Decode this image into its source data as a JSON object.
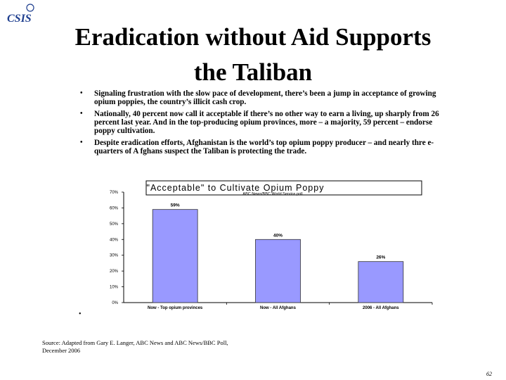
{
  "logo_text": "CSIS",
  "title_line1": "Eradication without Aid Supports",
  "title_line2": "the Taliban",
  "bullets": [
    "Signaling frustration with the slow pace of development, there’s been a jump in acceptance of growing opium poppies, the country’s illicit cash crop.",
    "Nationally, 40 percent now call it acceptable if there’s no other way to earn a living, up sharply from 26 percent last year. And in the top-producing opium provinces, more – a majority, 59 percent – endorse poppy cultivation.",
    "Despite eradication efforts, Afghanistan is the world’s top opium poppy producer – and nearly thre e-quarters of A fghans suspect the Taliban is protecting the trade."
  ],
  "bullet_glyph": "•",
  "chart_data": {
    "type": "bar",
    "title": "\"Acceptable\" to Cultivate Opium Poppy",
    "subtitle": "ABC News/BBC World Service poll",
    "categories": [
      "Now - Top opium provinces",
      "Now - All Afghans",
      "2006 - All Afghans"
    ],
    "values": [
      59,
      40,
      26
    ],
    "data_labels": [
      "59%",
      "40%",
      "26%"
    ],
    "ylim": [
      0,
      70
    ],
    "yticks": [
      "0%",
      "10%",
      "20%",
      "30%",
      "40%",
      "50%",
      "60%",
      "70%"
    ],
    "ytick_values": [
      0,
      10,
      20,
      30,
      40,
      50,
      60,
      70
    ],
    "xlabel": "",
    "ylabel": "",
    "bar_color": "#9999ff",
    "grid": false
  },
  "source": "Source: Adapted from Gary E. Langer, ABC News and ABC News/BBC Poll, December 2006",
  "page_number": "62",
  "colors": {
    "logo_blue": "#1f3f8f",
    "bar_fill": "#9999ff",
    "bar_stroke": "#333333"
  }
}
